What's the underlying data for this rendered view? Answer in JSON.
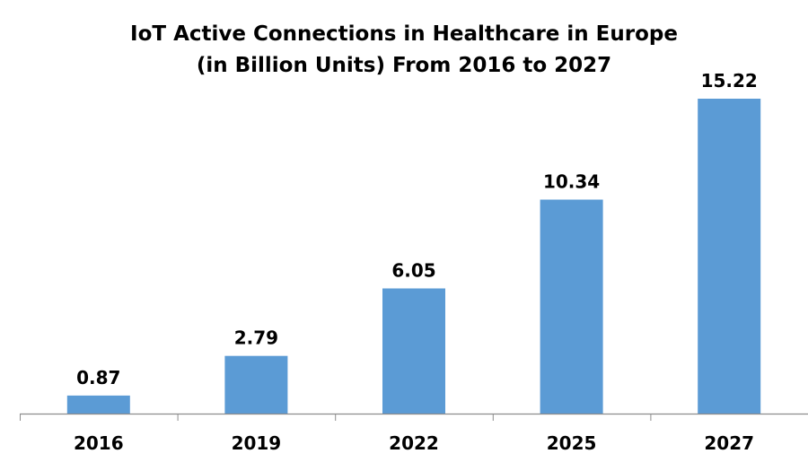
{
  "chart_data": {
    "type": "bar",
    "title": "IoT Active Connections in Healthcare in Europe",
    "subtitle": "(in Billion Units) From 2016 to 2027",
    "categories": [
      "2016",
      "2019",
      "2022",
      "2025",
      "2027"
    ],
    "values": [
      0.87,
      2.79,
      6.05,
      10.34,
      15.22
    ],
    "data_labels": [
      "0.87",
      "2.79",
      "6.05",
      "10.34",
      "15.22"
    ],
    "xlabel": "",
    "ylabel": "",
    "ylim": [
      0,
      16
    ],
    "grid": false,
    "legend": "none",
    "y_axis_visible": false,
    "bar_color": "#5b9bd5",
    "axis_color": "#8c8c8c"
  }
}
